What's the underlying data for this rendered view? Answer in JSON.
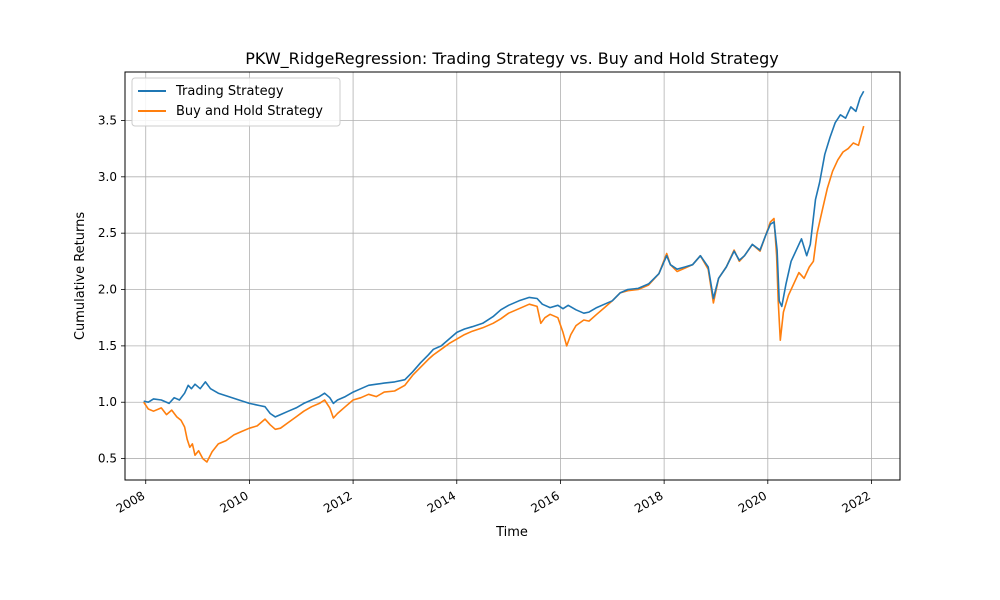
{
  "chart_data": {
    "type": "line",
    "title": "PKW_RidgeRegression: Trading Strategy vs. Buy and Hold Strategy",
    "xlabel": "Time",
    "ylabel": "Cumulative Returns",
    "xlim": [
      2007.6,
      2022.55
    ],
    "ylim": [
      0.31,
      3.93
    ],
    "x_ticks": [
      "2008",
      "2010",
      "2012",
      "2014",
      "2016",
      "2018",
      "2020",
      "2022"
    ],
    "x_tick_values": [
      2008,
      2010,
      2012,
      2014,
      2016,
      2018,
      2020,
      2022
    ],
    "y_ticks": [
      "0.5",
      "1.0",
      "1.5",
      "2.0",
      "2.5",
      "3.0",
      "3.5"
    ],
    "y_tick_values": [
      0.5,
      1.0,
      1.5,
      2.0,
      2.5,
      3.0,
      3.5
    ],
    "grid": true,
    "legend_position": "top-left",
    "colors": {
      "trading": "#1f77b4",
      "buyhold": "#ff7f0e"
    },
    "series": [
      {
        "name": "Trading Strategy",
        "color": "#1f77b4",
        "points": [
          [
            2007.96,
            1.01
          ],
          [
            2008.05,
            1.0
          ],
          [
            2008.15,
            1.03
          ],
          [
            2008.3,
            1.02
          ],
          [
            2008.45,
            0.99
          ],
          [
            2008.55,
            1.04
          ],
          [
            2008.65,
            1.02
          ],
          [
            2008.75,
            1.08
          ],
          [
            2008.82,
            1.15
          ],
          [
            2008.88,
            1.12
          ],
          [
            2008.95,
            1.16
          ],
          [
            2009.05,
            1.12
          ],
          [
            2009.15,
            1.18
          ],
          [
            2009.25,
            1.12
          ],
          [
            2009.4,
            1.08
          ],
          [
            2009.6,
            1.05
          ],
          [
            2009.8,
            1.02
          ],
          [
            2010.0,
            0.99
          ],
          [
            2010.2,
            0.97
          ],
          [
            2010.3,
            0.96
          ],
          [
            2010.4,
            0.9
          ],
          [
            2010.5,
            0.87
          ],
          [
            2010.6,
            0.89
          ],
          [
            2010.75,
            0.92
          ],
          [
            2010.9,
            0.95
          ],
          [
            2011.05,
            0.99
          ],
          [
            2011.2,
            1.02
          ],
          [
            2011.35,
            1.05
          ],
          [
            2011.45,
            1.08
          ],
          [
            2011.55,
            1.04
          ],
          [
            2011.62,
            0.99
          ],
          [
            2011.7,
            1.02
          ],
          [
            2011.85,
            1.05
          ],
          [
            2012.0,
            1.09
          ],
          [
            2012.15,
            1.12
          ],
          [
            2012.3,
            1.15
          ],
          [
            2012.45,
            1.16
          ],
          [
            2012.6,
            1.17
          ],
          [
            2012.8,
            1.18
          ],
          [
            2013.0,
            1.2
          ],
          [
            2013.15,
            1.27
          ],
          [
            2013.3,
            1.35
          ],
          [
            2013.45,
            1.42
          ],
          [
            2013.55,
            1.47
          ],
          [
            2013.7,
            1.5
          ],
          [
            2013.85,
            1.56
          ],
          [
            2014.0,
            1.62
          ],
          [
            2014.15,
            1.65
          ],
          [
            2014.3,
            1.67
          ],
          [
            2014.5,
            1.7
          ],
          [
            2014.7,
            1.76
          ],
          [
            2014.85,
            1.82
          ],
          [
            2015.0,
            1.86
          ],
          [
            2015.2,
            1.9
          ],
          [
            2015.4,
            1.93
          ],
          [
            2015.55,
            1.92
          ],
          [
            2015.65,
            1.87
          ],
          [
            2015.8,
            1.84
          ],
          [
            2015.95,
            1.86
          ],
          [
            2016.05,
            1.83
          ],
          [
            2016.15,
            1.86
          ],
          [
            2016.3,
            1.82
          ],
          [
            2016.45,
            1.79
          ],
          [
            2016.55,
            1.8
          ],
          [
            2016.7,
            1.84
          ],
          [
            2016.85,
            1.87
          ],
          [
            2017.0,
            1.9
          ],
          [
            2017.15,
            1.97
          ],
          [
            2017.3,
            2.0
          ],
          [
            2017.5,
            2.01
          ],
          [
            2017.7,
            2.05
          ],
          [
            2017.9,
            2.14
          ],
          [
            2018.05,
            2.3
          ],
          [
            2018.12,
            2.22
          ],
          [
            2018.25,
            2.18
          ],
          [
            2018.4,
            2.2
          ],
          [
            2018.55,
            2.22
          ],
          [
            2018.7,
            2.3
          ],
          [
            2018.85,
            2.2
          ],
          [
            2018.95,
            1.92
          ],
          [
            2019.05,
            2.1
          ],
          [
            2019.2,
            2.2
          ],
          [
            2019.35,
            2.34
          ],
          [
            2019.45,
            2.26
          ],
          [
            2019.55,
            2.3
          ],
          [
            2019.7,
            2.4
          ],
          [
            2019.85,
            2.35
          ],
          [
            2019.95,
            2.47
          ],
          [
            2020.05,
            2.58
          ],
          [
            2020.12,
            2.6
          ],
          [
            2020.18,
            2.35
          ],
          [
            2020.22,
            1.9
          ],
          [
            2020.27,
            1.85
          ],
          [
            2020.35,
            2.05
          ],
          [
            2020.45,
            2.25
          ],
          [
            2020.55,
            2.35
          ],
          [
            2020.65,
            2.45
          ],
          [
            2020.75,
            2.3
          ],
          [
            2020.82,
            2.4
          ],
          [
            2020.92,
            2.8
          ],
          [
            2021.0,
            2.95
          ],
          [
            2021.1,
            3.2
          ],
          [
            2021.2,
            3.35
          ],
          [
            2021.3,
            3.48
          ],
          [
            2021.4,
            3.55
          ],
          [
            2021.5,
            3.52
          ],
          [
            2021.6,
            3.62
          ],
          [
            2021.7,
            3.58
          ],
          [
            2021.78,
            3.7
          ],
          [
            2021.85,
            3.76
          ]
        ]
      },
      {
        "name": "Buy and Hold Strategy",
        "color": "#ff7f0e",
        "points": [
          [
            2007.96,
            1.0
          ],
          [
            2008.05,
            0.94
          ],
          [
            2008.15,
            0.92
          ],
          [
            2008.3,
            0.95
          ],
          [
            2008.4,
            0.89
          ],
          [
            2008.5,
            0.93
          ],
          [
            2008.6,
            0.87
          ],
          [
            2008.68,
            0.84
          ],
          [
            2008.75,
            0.78
          ],
          [
            2008.8,
            0.67
          ],
          [
            2008.85,
            0.6
          ],
          [
            2008.9,
            0.63
          ],
          [
            2008.95,
            0.53
          ],
          [
            2009.02,
            0.57
          ],
          [
            2009.1,
            0.5
          ],
          [
            2009.18,
            0.47
          ],
          [
            2009.28,
            0.56
          ],
          [
            2009.4,
            0.63
          ],
          [
            2009.55,
            0.66
          ],
          [
            2009.7,
            0.71
          ],
          [
            2009.85,
            0.74
          ],
          [
            2010.0,
            0.77
          ],
          [
            2010.15,
            0.79
          ],
          [
            2010.3,
            0.85
          ],
          [
            2010.4,
            0.8
          ],
          [
            2010.5,
            0.76
          ],
          [
            2010.6,
            0.77
          ],
          [
            2010.75,
            0.82
          ],
          [
            2010.9,
            0.87
          ],
          [
            2011.05,
            0.92
          ],
          [
            2011.2,
            0.96
          ],
          [
            2011.35,
            0.99
          ],
          [
            2011.45,
            1.02
          ],
          [
            2011.55,
            0.95
          ],
          [
            2011.62,
            0.86
          ],
          [
            2011.7,
            0.9
          ],
          [
            2011.85,
            0.96
          ],
          [
            2012.0,
            1.02
          ],
          [
            2012.15,
            1.04
          ],
          [
            2012.3,
            1.07
          ],
          [
            2012.45,
            1.05
          ],
          [
            2012.6,
            1.09
          ],
          [
            2012.8,
            1.1
          ],
          [
            2013.0,
            1.15
          ],
          [
            2013.15,
            1.24
          ],
          [
            2013.3,
            1.31
          ],
          [
            2013.45,
            1.38
          ],
          [
            2013.55,
            1.42
          ],
          [
            2013.7,
            1.47
          ],
          [
            2013.85,
            1.52
          ],
          [
            2014.0,
            1.56
          ],
          [
            2014.15,
            1.6
          ],
          [
            2014.3,
            1.63
          ],
          [
            2014.5,
            1.66
          ],
          [
            2014.7,
            1.7
          ],
          [
            2014.85,
            1.74
          ],
          [
            2015.0,
            1.79
          ],
          [
            2015.2,
            1.83
          ],
          [
            2015.4,
            1.87
          ],
          [
            2015.55,
            1.85
          ],
          [
            2015.62,
            1.7
          ],
          [
            2015.7,
            1.75
          ],
          [
            2015.8,
            1.78
          ],
          [
            2015.95,
            1.75
          ],
          [
            2016.05,
            1.62
          ],
          [
            2016.12,
            1.5
          ],
          [
            2016.2,
            1.6
          ],
          [
            2016.3,
            1.68
          ],
          [
            2016.45,
            1.73
          ],
          [
            2016.55,
            1.72
          ],
          [
            2016.7,
            1.78
          ],
          [
            2016.85,
            1.84
          ],
          [
            2017.0,
            1.9
          ],
          [
            2017.15,
            1.97
          ],
          [
            2017.3,
            1.99
          ],
          [
            2017.5,
            2.0
          ],
          [
            2017.7,
            2.04
          ],
          [
            2017.9,
            2.14
          ],
          [
            2018.05,
            2.32
          ],
          [
            2018.12,
            2.22
          ],
          [
            2018.25,
            2.16
          ],
          [
            2018.4,
            2.19
          ],
          [
            2018.55,
            2.22
          ],
          [
            2018.7,
            2.3
          ],
          [
            2018.85,
            2.18
          ],
          [
            2018.95,
            1.88
          ],
          [
            2019.05,
            2.1
          ],
          [
            2019.2,
            2.2
          ],
          [
            2019.35,
            2.35
          ],
          [
            2019.45,
            2.25
          ],
          [
            2019.55,
            2.3
          ],
          [
            2019.7,
            2.4
          ],
          [
            2019.85,
            2.34
          ],
          [
            2019.95,
            2.47
          ],
          [
            2020.05,
            2.6
          ],
          [
            2020.12,
            2.63
          ],
          [
            2020.17,
            2.3
          ],
          [
            2020.2,
            1.9
          ],
          [
            2020.24,
            1.55
          ],
          [
            2020.3,
            1.8
          ],
          [
            2020.4,
            1.95
          ],
          [
            2020.5,
            2.05
          ],
          [
            2020.6,
            2.15
          ],
          [
            2020.7,
            2.1
          ],
          [
            2020.8,
            2.2
          ],
          [
            2020.88,
            2.25
          ],
          [
            2020.95,
            2.5
          ],
          [
            2021.05,
            2.7
          ],
          [
            2021.15,
            2.9
          ],
          [
            2021.25,
            3.05
          ],
          [
            2021.35,
            3.15
          ],
          [
            2021.45,
            3.22
          ],
          [
            2021.55,
            3.25
          ],
          [
            2021.65,
            3.3
          ],
          [
            2021.75,
            3.28
          ],
          [
            2021.85,
            3.45
          ]
        ]
      }
    ]
  }
}
